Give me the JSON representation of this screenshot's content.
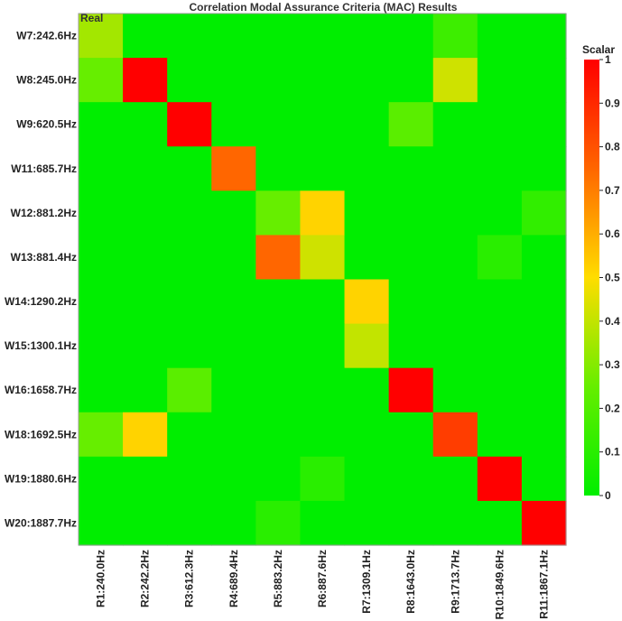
{
  "chart_data": {
    "type": "heatmap",
    "title": "Correlation Modal Assurance Criteria (MAC) Results",
    "corner_label": "Real",
    "x_categories": [
      "R1:240.0Hz",
      "R2:242.2Hz",
      "R3:612.3Hz",
      "R4:689.4Hz",
      "R5:883.2Hz",
      "R6:887.6Hz",
      "R7:1309.1Hz",
      "R8:1643.0Hz",
      "R9:1713.7Hz",
      "R10:1849.6Hz",
      "R11:1867.1Hz"
    ],
    "y_categories": [
      "W7:242.6Hz",
      "W8:245.0Hz",
      "W9:620.5Hz",
      "W11:685.7Hz",
      "W12:881.2Hz",
      "W13:881.4Hz",
      "W14:1290.2Hz",
      "W15:1300.1Hz",
      "W16:1658.7Hz",
      "W18:1692.5Hz",
      "W19:1880.6Hz",
      "W20:1887.7Hz"
    ],
    "values": [
      [
        0.35,
        0,
        0,
        0,
        0,
        0,
        0,
        0,
        0.15,
        0,
        0
      ],
      [
        0.25,
        1.0,
        0,
        0,
        0,
        0,
        0,
        0,
        0.42,
        0,
        0
      ],
      [
        0,
        0,
        1.0,
        0,
        0,
        0,
        0,
        0.22,
        0,
        0,
        0
      ],
      [
        0,
        0,
        0,
        0.75,
        0,
        0,
        0,
        0,
        0,
        0,
        0
      ],
      [
        0,
        0,
        0,
        0,
        0.25,
        0.52,
        0,
        0,
        0,
        0,
        0.12
      ],
      [
        0,
        0,
        0,
        0,
        0.75,
        0.42,
        0,
        0,
        0,
        0.1,
        0
      ],
      [
        0,
        0,
        0,
        0,
        0,
        0,
        0.52,
        0,
        0,
        0,
        0
      ],
      [
        0,
        0,
        0,
        0,
        0,
        0,
        0.4,
        0,
        0,
        0,
        0
      ],
      [
        0,
        0,
        0.22,
        0,
        0,
        0,
        0,
        1.0,
        0,
        0,
        0
      ],
      [
        0.25,
        0.52,
        0,
        0,
        0,
        0,
        0,
        0,
        0.85,
        0,
        0
      ],
      [
        0,
        0,
        0,
        0,
        0,
        0.1,
        0,
        0,
        0,
        1.0,
        0
      ],
      [
        0,
        0,
        0,
        0,
        0.1,
        0,
        0,
        0,
        0,
        0,
        1.0
      ]
    ],
    "zlim": [
      0,
      1
    ],
    "colorbar": {
      "title": "Scalar",
      "ticks": [
        "1",
        "0.9",
        "0.8",
        "0.7",
        "0.6",
        "0.5",
        "0.4",
        "0.3",
        "0.2",
        "0.1",
        "0"
      ],
      "colors": [
        "#00ee00",
        "#66ee00",
        "#ffdd00",
        "#ff6600",
        "#ff0000"
      ]
    }
  }
}
